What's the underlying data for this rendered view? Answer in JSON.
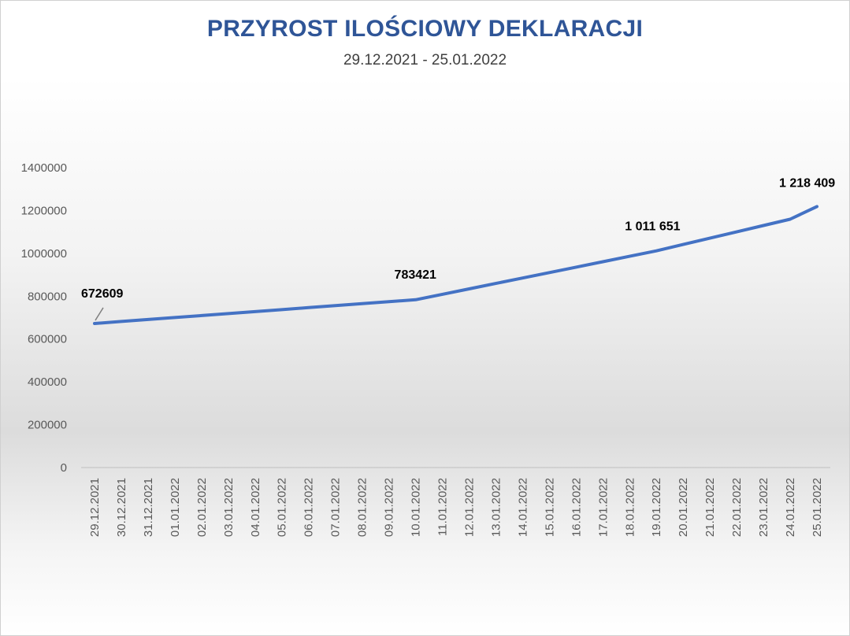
{
  "chart_data": {
    "type": "line",
    "title": "PRZYROST ILOŚCIOWY DEKLARACJI",
    "subtitle": "29.12.2021 - 25.01.2022",
    "xlabel": "",
    "ylabel": "",
    "ylim": [
      0,
      1400000
    ],
    "yticks": [
      0,
      200000,
      400000,
      600000,
      800000,
      1000000,
      1200000,
      1400000
    ],
    "ytick_labels": [
      "0",
      "200000",
      "400000",
      "600000",
      "800000",
      "1000000",
      "1200000",
      "1400000"
    ],
    "grid": false,
    "legend": "none",
    "color": "#4472c4",
    "x": [
      "29.12.2021",
      "30.12.2021",
      "31.12.2021",
      "01.01.2022",
      "02.01.2022",
      "03.01.2022",
      "04.01.2022",
      "05.01.2022",
      "06.01.2022",
      "07.01.2022",
      "08.01.2022",
      "09.01.2022",
      "10.01.2022",
      "11.01.2022",
      "12.01.2022",
      "13.01.2022",
      "14.01.2022",
      "15.01.2022",
      "16.01.2022",
      "17.01.2022",
      "18.01.2022",
      "19.01.2022",
      "20.01.2022",
      "21.01.2022",
      "22.01.2022",
      "23.01.2022",
      "24.01.2022",
      "25.01.2022"
    ],
    "series": [
      {
        "values": [
          672609,
          681843,
          691078,
          700312,
          709546,
          718781,
          728015,
          737249,
          746484,
          755718,
          764952,
          774187,
          783421,
          808780,
          834139,
          859498,
          884857,
          910216,
          935575,
          960934,
          986292,
          1011651,
          1041200,
          1070740,
          1100310,
          1129850,
          1159390,
          1218409
        ]
      }
    ],
    "data_labels": [
      {
        "index": 0,
        "text": "672609"
      },
      {
        "index": 12,
        "text": "783421"
      },
      {
        "index": 21,
        "text": "1 011 651"
      },
      {
        "index": 27,
        "text": "1 218 409"
      }
    ]
  }
}
